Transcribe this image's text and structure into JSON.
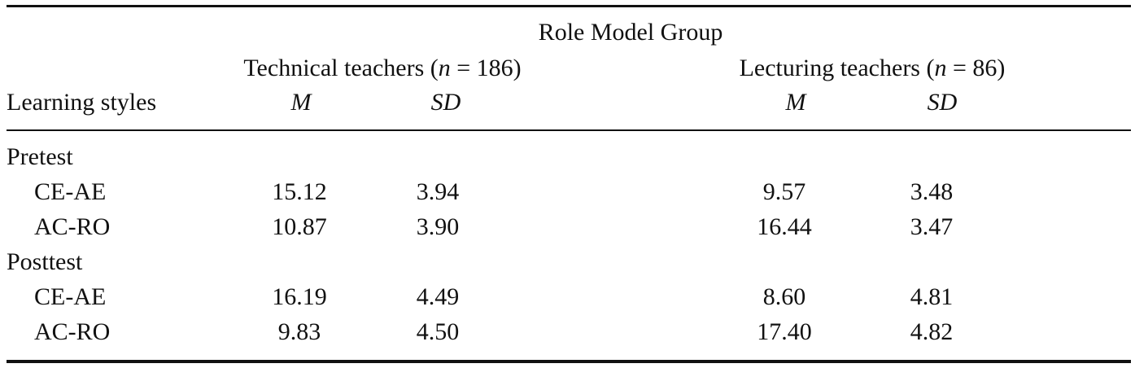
{
  "table": {
    "spanner": "Role Model Group",
    "groups": [
      [
        "Technical teachers (",
        "n",
        " = 186)"
      ],
      [
        "Lecturing teachers (",
        "n",
        " = 86)"
      ]
    ],
    "stub_header": "Learning styles",
    "column_headers": [
      "M",
      "SD",
      "M",
      "SD"
    ],
    "sections": [
      {
        "label": "Pretest",
        "rows": [
          {
            "label": "CE-AE",
            "cells": [
              "15.12",
              "3.94",
              "9.57",
              "3.48"
            ]
          },
          {
            "label": "AC-RO",
            "cells": [
              "10.87",
              "3.90",
              "16.44",
              "3.47"
            ]
          }
        ]
      },
      {
        "label": "Posttest",
        "rows": [
          {
            "label": "CE-AE",
            "cells": [
              "16.19",
              "4.49",
              "8.60",
              "4.81"
            ]
          },
          {
            "label": "AC-RO",
            "cells": [
              "9.83",
              "4.50",
              "17.40",
              "4.82"
            ]
          }
        ]
      }
    ]
  }
}
